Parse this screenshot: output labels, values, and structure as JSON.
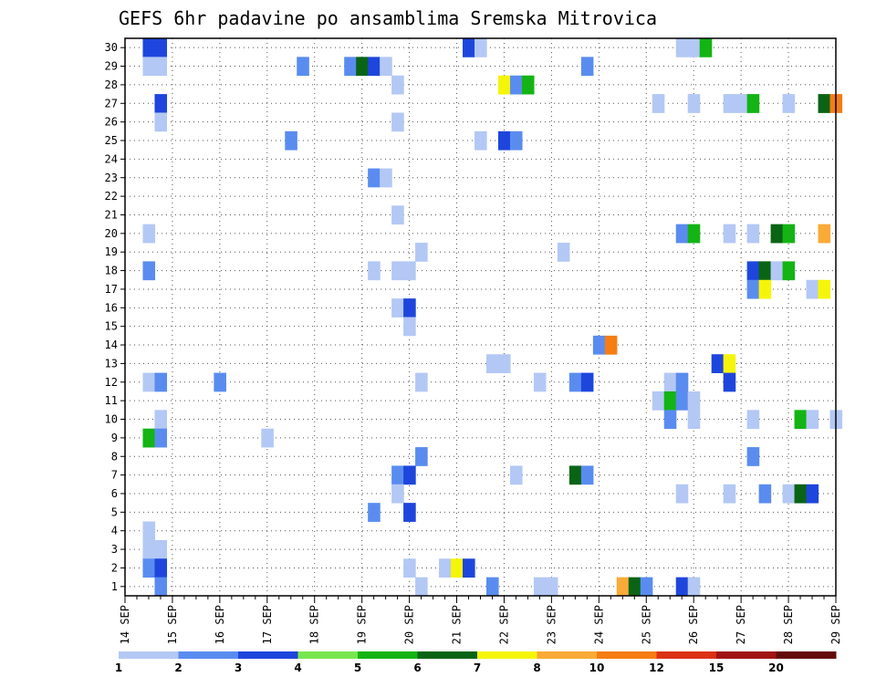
{
  "chart_data": {
    "type": "heatmap",
    "title": "GEFS 6hr padavine po ansamblima Sremska Mitrovica",
    "x_tick_labels": [
      "14 SEP",
      "15 SEP",
      "16 SEP",
      "17 SEP",
      "18 SEP",
      "19 SEP",
      "20 SEP",
      "21 SEP",
      "22 SEP",
      "23 SEP",
      "24 SEP",
      "25 SEP",
      "26 SEP",
      "27 SEP",
      "28 SEP",
      "29 SEP"
    ],
    "x_range": [
      0,
      60
    ],
    "y_range": [
      0.5,
      30.5
    ],
    "y_ticks": [
      "1",
      "2",
      "3",
      "4",
      "5",
      "6",
      "7",
      "8",
      "9",
      "10",
      "11",
      "12",
      "13",
      "14",
      "15",
      "16",
      "17",
      "18",
      "19",
      "20",
      "21",
      "22",
      "23",
      "24",
      "25",
      "26",
      "27",
      "28",
      "29",
      "30"
    ],
    "grid": true,
    "legend": {
      "position": "bottom",
      "labels": [
        "1",
        "2",
        "3",
        "4",
        "5",
        "6",
        "7",
        "8",
        "10",
        "12",
        "15",
        "20"
      ],
      "colors": [
        "#b4c8f5",
        "#5a8cf0",
        "#1e46dc",
        "#78e650",
        "#14b414",
        "#0a6414",
        "#f5f50a",
        "#faaa37",
        "#f57d14",
        "#dc3214",
        "#a01414",
        "#640a0a"
      ]
    },
    "cells": [
      {
        "t": 2,
        "m": 30,
        "c": 3
      },
      {
        "t": 3,
        "m": 30,
        "c": 3
      },
      {
        "t": 29,
        "m": 30,
        "c": 3
      },
      {
        "t": 30,
        "m": 30,
        "c": 1
      },
      {
        "t": 47,
        "m": 30,
        "c": 1
      },
      {
        "t": 48,
        "m": 30,
        "c": 1
      },
      {
        "t": 49,
        "m": 30,
        "c": 5
      },
      {
        "t": 2,
        "m": 29,
        "c": 1
      },
      {
        "t": 3,
        "m": 29,
        "c": 1
      },
      {
        "t": 15,
        "m": 29,
        "c": 2
      },
      {
        "t": 19,
        "m": 29,
        "c": 2
      },
      {
        "t": 20,
        "m": 29,
        "c": 6
      },
      {
        "t": 21,
        "m": 29,
        "c": 3
      },
      {
        "t": 22,
        "m": 29,
        "c": 1
      },
      {
        "t": 39,
        "m": 29,
        "c": 2
      },
      {
        "t": 23,
        "m": 28,
        "c": 1
      },
      {
        "t": 32,
        "m": 28,
        "c": 7
      },
      {
        "t": 33,
        "m": 28,
        "c": 2
      },
      {
        "t": 34,
        "m": 28,
        "c": 5
      },
      {
        "t": 3,
        "m": 27,
        "c": 3
      },
      {
        "t": 45,
        "m": 27,
        "c": 1
      },
      {
        "t": 48,
        "m": 27,
        "c": 1
      },
      {
        "t": 51,
        "m": 27,
        "c": 1
      },
      {
        "t": 52,
        "m": 27,
        "c": 1
      },
      {
        "t": 53,
        "m": 27,
        "c": 5
      },
      {
        "t": 56,
        "m": 27,
        "c": 1
      },
      {
        "t": 59,
        "m": 27,
        "c": 6
      },
      {
        "t": 60,
        "m": 27,
        "c": 9
      },
      {
        "t": 3,
        "m": 26,
        "c": 1
      },
      {
        "t": 23,
        "m": 26,
        "c": 1
      },
      {
        "t": 14,
        "m": 25,
        "c": 2
      },
      {
        "t": 30,
        "m": 25,
        "c": 1
      },
      {
        "t": 32,
        "m": 25,
        "c": 3
      },
      {
        "t": 33,
        "m": 25,
        "c": 2
      },
      {
        "t": 21,
        "m": 23,
        "c": 2
      },
      {
        "t": 22,
        "m": 23,
        "c": 1
      },
      {
        "t": 23,
        "m": 21,
        "c": 1
      },
      {
        "t": 2,
        "m": 20,
        "c": 1
      },
      {
        "t": 47,
        "m": 20,
        "c": 2
      },
      {
        "t": 48,
        "m": 20,
        "c": 5
      },
      {
        "t": 51,
        "m": 20,
        "c": 1
      },
      {
        "t": 53,
        "m": 20,
        "c": 1
      },
      {
        "t": 55,
        "m": 20,
        "c": 6
      },
      {
        "t": 56,
        "m": 20,
        "c": 5
      },
      {
        "t": 59,
        "m": 20,
        "c": 8
      },
      {
        "t": 25,
        "m": 19,
        "c": 1
      },
      {
        "t": 37,
        "m": 19,
        "c": 1
      },
      {
        "t": 2,
        "m": 18,
        "c": 2
      },
      {
        "t": 21,
        "m": 18,
        "c": 1
      },
      {
        "t": 23,
        "m": 18,
        "c": 1
      },
      {
        "t": 24,
        "m": 18,
        "c": 1
      },
      {
        "t": 53,
        "m": 18,
        "c": 3
      },
      {
        "t": 54,
        "m": 18,
        "c": 6
      },
      {
        "t": 55,
        "m": 18,
        "c": 1
      },
      {
        "t": 56,
        "m": 18,
        "c": 5
      },
      {
        "t": 53,
        "m": 17,
        "c": 2
      },
      {
        "t": 54,
        "m": 17,
        "c": 7
      },
      {
        "t": 58,
        "m": 17,
        "c": 1
      },
      {
        "t": 59,
        "m": 17,
        "c": 7
      },
      {
        "t": 23,
        "m": 16,
        "c": 1
      },
      {
        "t": 24,
        "m": 16,
        "c": 3
      },
      {
        "t": 24,
        "m": 15,
        "c": 1
      },
      {
        "t": 40,
        "m": 14,
        "c": 2
      },
      {
        "t": 41,
        "m": 14,
        "c": 9
      },
      {
        "t": 31,
        "m": 13,
        "c": 1
      },
      {
        "t": 32,
        "m": 13,
        "c": 1
      },
      {
        "t": 50,
        "m": 13,
        "c": 3
      },
      {
        "t": 51,
        "m": 13,
        "c": 7
      },
      {
        "t": 2,
        "m": 12,
        "c": 1
      },
      {
        "t": 3,
        "m": 12,
        "c": 2
      },
      {
        "t": 8,
        "m": 12,
        "c": 2
      },
      {
        "t": 25,
        "m": 12,
        "c": 1
      },
      {
        "t": 35,
        "m": 12,
        "c": 1
      },
      {
        "t": 38,
        "m": 12,
        "c": 2
      },
      {
        "t": 39,
        "m": 12,
        "c": 3
      },
      {
        "t": 46,
        "m": 12,
        "c": 1
      },
      {
        "t": 47,
        "m": 12,
        "c": 2
      },
      {
        "t": 51,
        "m": 12,
        "c": 3
      },
      {
        "t": 45,
        "m": 11,
        "c": 1
      },
      {
        "t": 46,
        "m": 11,
        "c": 5
      },
      {
        "t": 47,
        "m": 11,
        "c": 2
      },
      {
        "t": 48,
        "m": 11,
        "c": 1
      },
      {
        "t": 3,
        "m": 10,
        "c": 1
      },
      {
        "t": 46,
        "m": 10,
        "c": 2
      },
      {
        "t": 48,
        "m": 10,
        "c": 1
      },
      {
        "t": 53,
        "m": 10,
        "c": 1
      },
      {
        "t": 57,
        "m": 10,
        "c": 5
      },
      {
        "t": 58,
        "m": 10,
        "c": 1
      },
      {
        "t": 60,
        "m": 10,
        "c": 1
      },
      {
        "t": 2,
        "m": 9,
        "c": 5
      },
      {
        "t": 3,
        "m": 9,
        "c": 2
      },
      {
        "t": 12,
        "m": 9,
        "c": 1
      },
      {
        "t": 25,
        "m": 8,
        "c": 2
      },
      {
        "t": 53,
        "m": 8,
        "c": 2
      },
      {
        "t": 23,
        "m": 7,
        "c": 2
      },
      {
        "t": 24,
        "m": 7,
        "c": 3
      },
      {
        "t": 33,
        "m": 7,
        "c": 1
      },
      {
        "t": 38,
        "m": 7,
        "c": 6
      },
      {
        "t": 39,
        "m": 7,
        "c": 2
      },
      {
        "t": 23,
        "m": 6,
        "c": 1
      },
      {
        "t": 47,
        "m": 6,
        "c": 1
      },
      {
        "t": 51,
        "m": 6,
        "c": 1
      },
      {
        "t": 54,
        "m": 6,
        "c": 2
      },
      {
        "t": 56,
        "m": 6,
        "c": 1
      },
      {
        "t": 57,
        "m": 6,
        "c": 6
      },
      {
        "t": 58,
        "m": 6,
        "c": 3
      },
      {
        "t": 21,
        "m": 5,
        "c": 2
      },
      {
        "t": 24,
        "m": 5,
        "c": 3
      },
      {
        "t": 2,
        "m": 4,
        "c": 1
      },
      {
        "t": 2,
        "m": 3,
        "c": 1
      },
      {
        "t": 3,
        "m": 3,
        "c": 1
      },
      {
        "t": 2,
        "m": 2,
        "c": 2
      },
      {
        "t": 3,
        "m": 2,
        "c": 3
      },
      {
        "t": 24,
        "m": 2,
        "c": 1
      },
      {
        "t": 27,
        "m": 2,
        "c": 1
      },
      {
        "t": 28,
        "m": 2,
        "c": 7
      },
      {
        "t": 29,
        "m": 2,
        "c": 3
      },
      {
        "t": 3,
        "m": 1,
        "c": 2
      },
      {
        "t": 25,
        "m": 1,
        "c": 1
      },
      {
        "t": 31,
        "m": 1,
        "c": 2
      },
      {
        "t": 35,
        "m": 1,
        "c": 1
      },
      {
        "t": 36,
        "m": 1,
        "c": 1
      },
      {
        "t": 42,
        "m": 1,
        "c": 8
      },
      {
        "t": 43,
        "m": 1,
        "c": 6
      },
      {
        "t": 44,
        "m": 1,
        "c": 2
      },
      {
        "t": 47,
        "m": 1,
        "c": 3
      },
      {
        "t": 48,
        "m": 1,
        "c": 1
      }
    ]
  }
}
